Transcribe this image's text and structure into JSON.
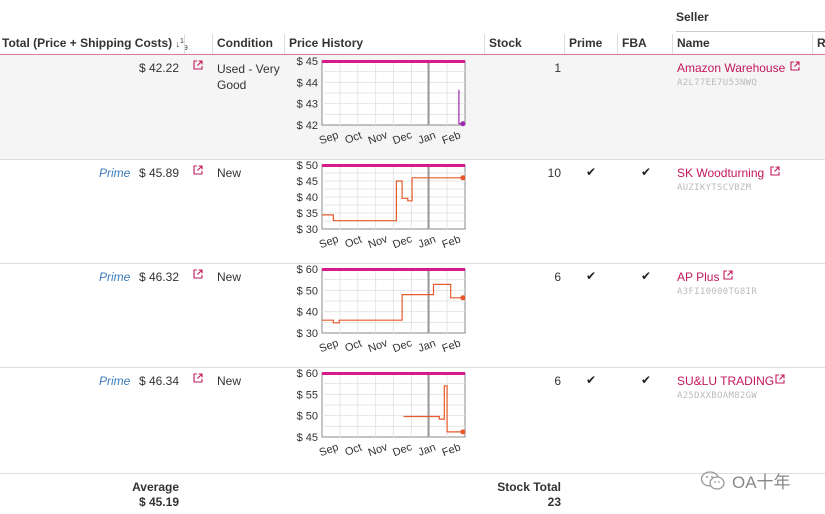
{
  "columns": {
    "total": "Total (Price + Shipping Costs)",
    "condition": "Condition",
    "price_history": "Price History",
    "stock": "Stock",
    "prime": "Prime",
    "fba": "FBA",
    "seller_group": "Seller",
    "name": "Name",
    "extra": "R"
  },
  "chart_months": [
    "Sep",
    "Oct",
    "Nov",
    "Dec",
    "Jan",
    "Feb"
  ],
  "rows": [
    {
      "prime_label": "",
      "price": "$ 42.22",
      "condition": "Used - Very Good",
      "stock": "1",
      "prime_check": "",
      "fba_check": "",
      "seller_name": "Amazon Warehouse",
      "seller_id": "A2L77EE7U53NWQ",
      "chart_data": {
        "type": "line",
        "x_ticks": [
          "Sep",
          "Oct",
          "Nov",
          "Dec",
          "Jan",
          "Feb"
        ],
        "y_ticks": [
          "$ 45",
          "$ 44",
          "$ 43",
          "$ 42"
        ],
        "ylim": [
          42,
          45
        ],
        "color": "#9c27b0"
      }
    },
    {
      "prime_label": "Prime",
      "price": "$ 45.89",
      "condition": "New",
      "stock": "10",
      "prime_check": "✔",
      "fba_check": "✔",
      "seller_name": "SK Woodturning",
      "seller_id": "AUZIKYTSCVBZM",
      "chart_data": {
        "type": "line",
        "x_ticks": [
          "Sep",
          "Oct",
          "Nov",
          "Dec",
          "Jan",
          "Feb"
        ],
        "y_ticks": [
          "$ 50",
          "$ 45",
          "$ 40",
          "$ 35",
          "$ 30"
        ],
        "ylim": [
          30,
          50
        ],
        "color": "#e85a2a"
      }
    },
    {
      "prime_label": "Prime",
      "price": "$ 46.32",
      "condition": "New",
      "stock": "6",
      "prime_check": "✔",
      "fba_check": "✔",
      "seller_name": "AP Plus",
      "seller_id": "A3FI10000TG8IR",
      "chart_data": {
        "type": "line",
        "x_ticks": [
          "Sep",
          "Oct",
          "Nov",
          "Dec",
          "Jan",
          "Feb"
        ],
        "y_ticks": [
          "$ 60",
          "$ 50",
          "$ 40",
          "$ 30"
        ],
        "ylim": [
          30,
          60
        ],
        "color": "#e85a2a"
      }
    },
    {
      "prime_label": "Prime",
      "price": "$ 46.34",
      "condition": "New",
      "stock": "6",
      "prime_check": "✔",
      "fba_check": "✔",
      "seller_name": "SU&LU TRADING",
      "seller_id": "A25DXXBOAM82GW",
      "chart_data": {
        "type": "line",
        "x_ticks": [
          "Sep",
          "Oct",
          "Nov",
          "Dec",
          "Jan",
          "Feb"
        ],
        "y_ticks": [
          "$ 60",
          "$ 55",
          "$ 50",
          "$ 45"
        ],
        "ylim": [
          45,
          60
        ],
        "color": "#e85a2a"
      }
    }
  ],
  "footer": {
    "average_label": "Average",
    "average_value": "$ 45.19",
    "stock_total_label": "Stock Total",
    "stock_total_value": "23"
  },
  "watermark": "OA十年",
  "colors": {
    "accent": "#c2185b",
    "prime": "#3b7bbf",
    "chart_top_bar": "#d81b8c"
  }
}
